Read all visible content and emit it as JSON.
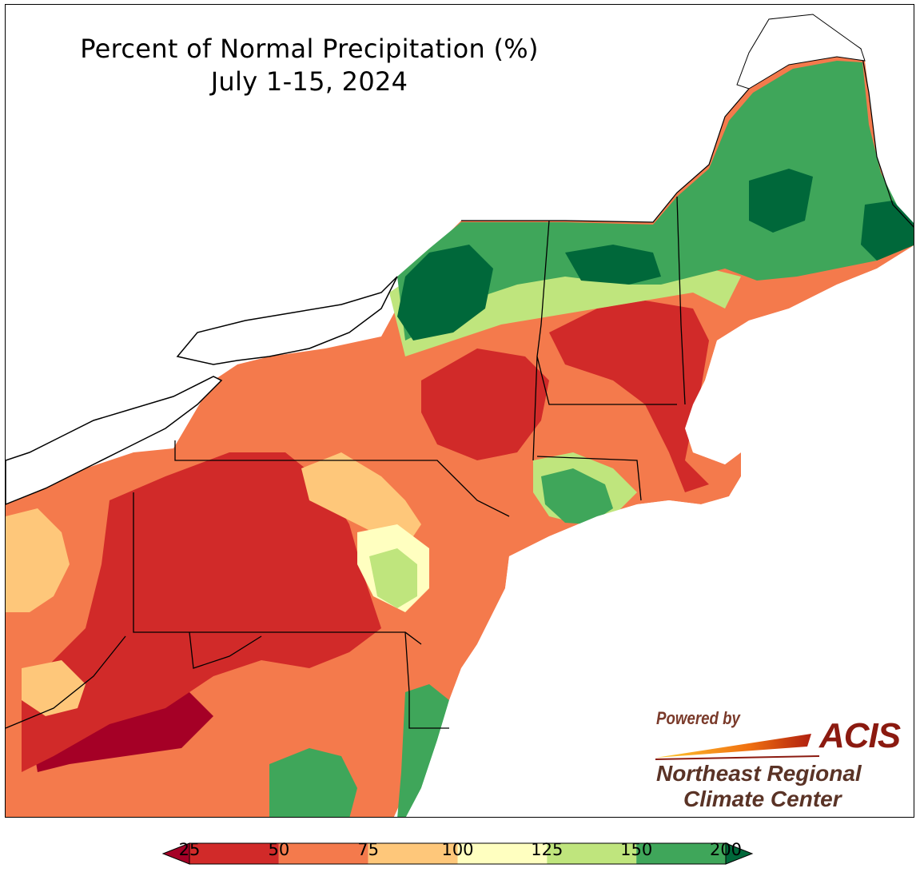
{
  "title": {
    "line1": "Percent of Normal Precipitation (%)",
    "line2": "July 1-15, 2024"
  },
  "logo": {
    "powered_by": "Powered by",
    "acis": "ACIS",
    "org_line1": "Northeast Regional",
    "org_line2": "Climate Center"
  },
  "legend": {
    "ticks": [
      "25",
      "50",
      "75",
      "100",
      "125",
      "150",
      "200"
    ],
    "colors": [
      "#a50026",
      "#d12a29",
      "#f47a4c",
      "#fec77a",
      "#ffffc0",
      "#bfe57d",
      "#3fa65a",
      "#00683a"
    ],
    "extend": "both"
  },
  "colors": {
    "lake": "#ffffff",
    "ocean": "#ffffff",
    "border": "#000000"
  }
}
